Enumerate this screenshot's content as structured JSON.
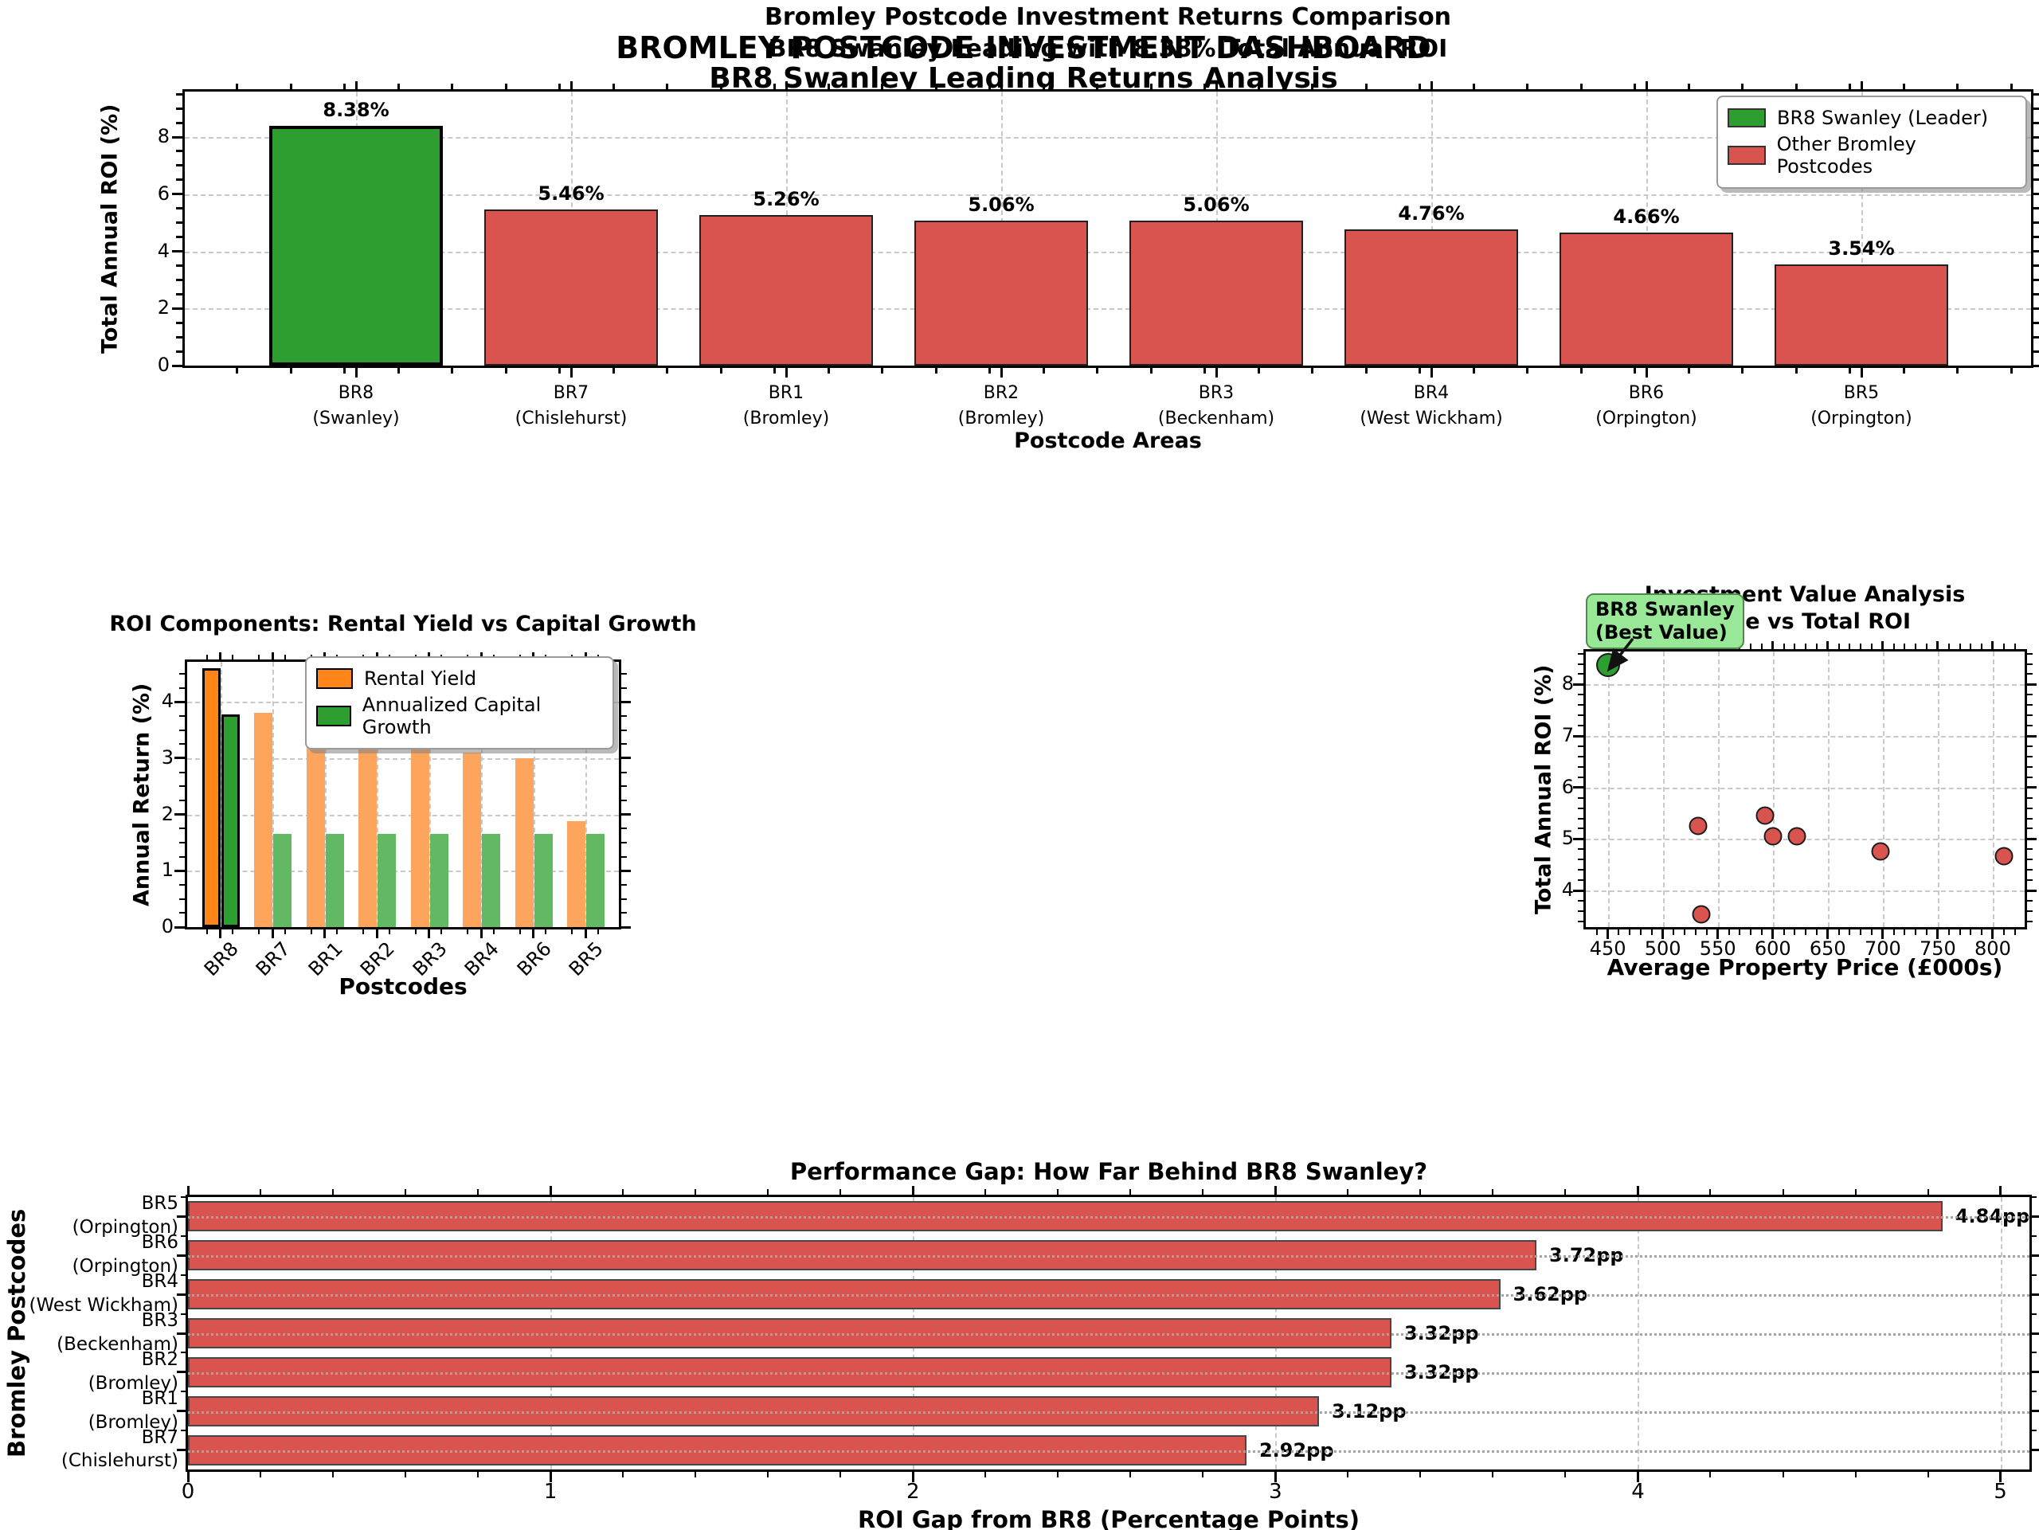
{
  "suptitle": {
    "line1": "BROMLEY POSTCODE INVESTMENT DASHBOARD",
    "line2": "BR8 Swanley Leading Returns Analysis"
  },
  "palette": {
    "leader_green": "#2e9e30",
    "other_red": "#d9534f",
    "rental_orange": "#ff8519",
    "muted_orange": "#fda55c",
    "muted_green": "#63b963",
    "annotation_bg": "#98e897",
    "annotation_border": "#4d8b4d",
    "grid": "#c9c9c9"
  },
  "chart_data": [
    {
      "id": "returns",
      "type": "bar",
      "title": "Bromley Postcode Investment Returns Comparison",
      "subtitle": "BR8 Swanley Leading with 8.38% Total Annual ROI",
      "xlabel": "Postcode Areas",
      "ylabel": "Total Annual ROI (%)",
      "ylim": [
        0,
        9.59
      ],
      "yticks": [
        0,
        2,
        4,
        6,
        8
      ],
      "categories": [
        "BR8\n(Swanley)",
        "BR7\n(Chislehurst)",
        "BR1\n(Bromley)",
        "BR2\n(Bromley)",
        "BR3\n(Beckenham)",
        "BR4\n(West Wickham)",
        "BR6\n(Orpington)",
        "BR5\n(Orpington)"
      ],
      "values": [
        8.38,
        5.46,
        5.26,
        5.06,
        5.06,
        4.76,
        4.66,
        3.54
      ],
      "bar_labels": [
        "8.38%",
        "5.46%",
        "5.26%",
        "5.06%",
        "5.06%",
        "4.76%",
        "4.66%",
        "3.54%"
      ],
      "highlight_index": 0,
      "grid": "both-dashed",
      "legend_position": "upper right",
      "legend": [
        {
          "label": "BR8 Swanley (Leader)",
          "color": "#2e9e30"
        },
        {
          "label": "Other Bromley Postcodes",
          "color": "#d9534f"
        }
      ]
    },
    {
      "id": "components",
      "type": "bar",
      "title": "ROI Components: Rental Yield vs Capital Growth",
      "xlabel": "Postcodes",
      "ylabel": "Annual Return (%)",
      "ylim": [
        0,
        4.71
      ],
      "yticks": [
        0,
        1,
        2,
        3,
        4
      ],
      "categories": [
        "BR8",
        "BR7",
        "BR1",
        "BR2",
        "BR3",
        "BR4",
        "BR6",
        "BR5"
      ],
      "series": [
        {
          "name": "Rental Yield",
          "values": [
            4.6,
            3.8,
            3.6,
            3.4,
            3.4,
            3.1,
            3.0,
            1.88
          ],
          "color": "#ff8519",
          "muted_color": "#fda55c"
        },
        {
          "name": "Annualized Capital Growth",
          "values": [
            3.78,
            1.66,
            1.66,
            1.66,
            1.66,
            1.66,
            1.66,
            1.66
          ],
          "color": "#2e9e30",
          "muted_color": "#63b963"
        }
      ],
      "highlight_index": 0,
      "grid": "both-dashed",
      "legend_position": "upper right"
    },
    {
      "id": "value",
      "type": "scatter",
      "title": "Investment Value Analysis",
      "subtitle": "Price vs Total ROI",
      "xlabel": "Average Property Price (£000s)",
      "ylabel": "Total Annual ROI (%)",
      "xlim": [
        430,
        829
      ],
      "ylim": [
        3.29,
        8.64
      ],
      "xticks": [
        450,
        500,
        550,
        600,
        650,
        700,
        750,
        800
      ],
      "yticks": [
        4,
        5,
        6,
        7,
        8
      ],
      "grid": "both-dashed",
      "points": [
        {
          "label": "BR8",
          "x": 450,
          "y": 8.38,
          "color": "#2e9e30",
          "diameter": 30,
          "highlight": true
        },
        {
          "label": "BR1",
          "x": 532,
          "y": 5.26,
          "color": "#d9534f",
          "diameter": 23
        },
        {
          "label": "BR7",
          "x": 593,
          "y": 5.46,
          "color": "#d9534f",
          "diameter": 23
        },
        {
          "label": "BR2",
          "x": 600,
          "y": 5.06,
          "color": "#d9534f",
          "diameter": 23
        },
        {
          "label": "BR3",
          "x": 622,
          "y": 5.06,
          "color": "#d9534f",
          "diameter": 23
        },
        {
          "label": "BR4",
          "x": 698,
          "y": 4.76,
          "color": "#d9534f",
          "diameter": 23
        },
        {
          "label": "BR6",
          "x": 810,
          "y": 4.66,
          "color": "#d9534f",
          "diameter": 23
        },
        {
          "label": "BR5",
          "x": 535,
          "y": 3.54,
          "color": "#d9534f",
          "diameter": 23
        }
      ],
      "annotation": {
        "line1": "BR8 Swanley",
        "line2": "(Best Value)",
        "target_point": "BR8"
      }
    },
    {
      "id": "gap",
      "type": "hbar",
      "title": "Performance Gap: How Far Behind BR8 Swanley?",
      "xlabel": "ROI Gap from BR8 (Percentage Points)",
      "ylabel": "Bromley Postcodes",
      "xlim": [
        0,
        5.08
      ],
      "xticks": [
        0,
        1,
        2,
        3,
        4,
        5
      ],
      "grid": "both-dashed",
      "categories": [
        "BR5\n(Orpington)",
        "BR6\n(Orpington)",
        "BR4\n(West Wickham)",
        "BR3\n(Beckenham)",
        "BR2\n(Bromley)",
        "BR1\n(Bromley)",
        "BR7\n(Chislehurst)"
      ],
      "values": [
        4.84,
        3.72,
        3.62,
        3.32,
        3.32,
        3.12,
        2.92
      ],
      "bar_labels": [
        "4.84pp",
        "3.72pp",
        "3.62pp",
        "3.32pp",
        "3.32pp",
        "3.12pp",
        "2.92pp"
      ]
    }
  ]
}
